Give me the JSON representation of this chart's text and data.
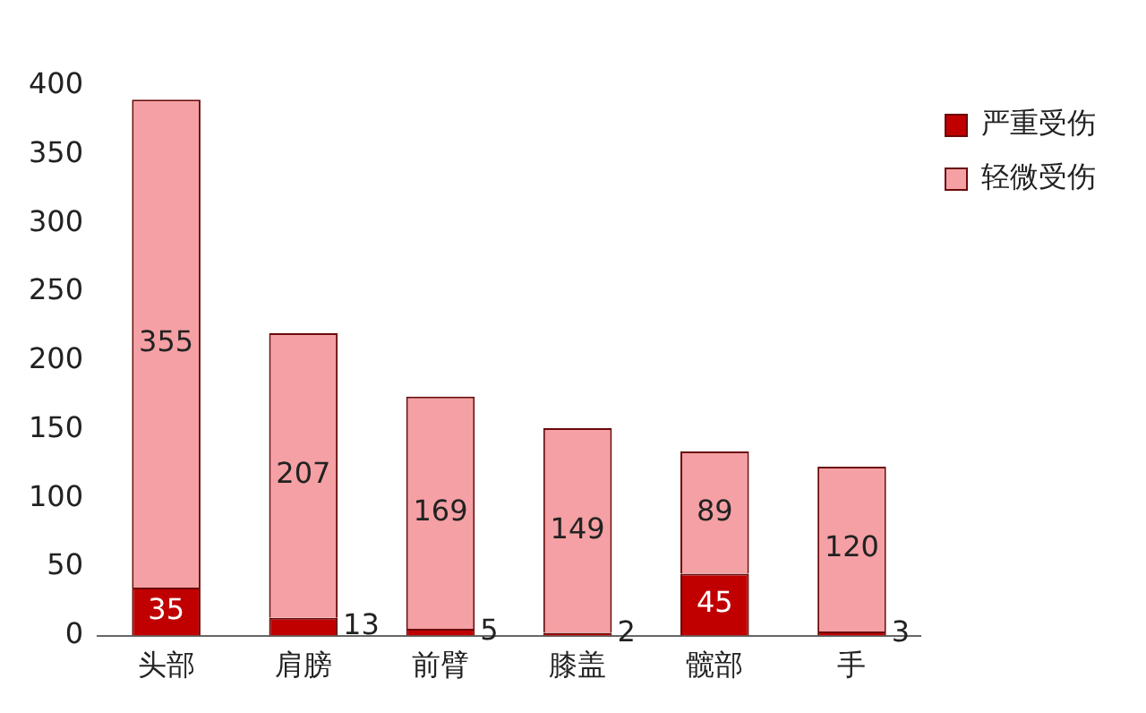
{
  "chart_data": {
    "type": "bar",
    "stacked": true,
    "categories": [
      "头部",
      "肩膀",
      "前臂",
      "膝盖",
      "髋部",
      "手"
    ],
    "series": [
      {
        "name": "严重受伤",
        "color": "#c00000",
        "values": [
          35,
          13,
          5,
          2,
          45,
          3
        ]
      },
      {
        "name": "轻微受伤",
        "color": "#f4a0a4",
        "values": [
          355,
          207,
          169,
          149,
          89,
          120
        ]
      }
    ],
    "ylim": [
      0,
      400
    ],
    "yticks": [
      0,
      50,
      100,
      150,
      200,
      250,
      300,
      350,
      400
    ],
    "grid": false,
    "legend": "top right",
    "data_labels": true
  }
}
